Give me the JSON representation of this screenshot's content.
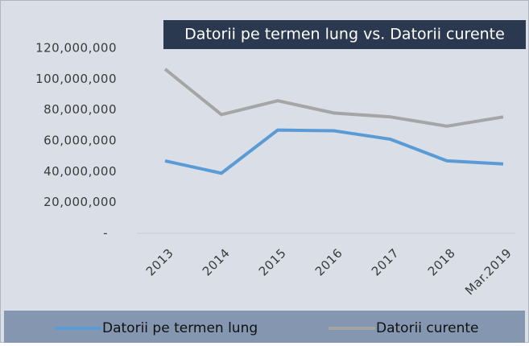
{
  "chart_data": {
    "type": "line",
    "title": "Datorii pe termen lung vs. Datorii curente",
    "categories": [
      "2013",
      "2014",
      "2015",
      "2016",
      "2017",
      "2018",
      "Mar.2019"
    ],
    "series": [
      {
        "name": "Datorii pe termen lung",
        "color": "#5b9bd5",
        "values": [
          47000000,
          39000000,
          67000000,
          66500000,
          61000000,
          47000000,
          45000000
        ]
      },
      {
        "name": "Datorii curente",
        "color": "#a5a5a5",
        "values": [
          106500000,
          77000000,
          86000000,
          78000000,
          75500000,
          69500000,
          75500000
        ]
      }
    ],
    "ylim": [
      0,
      120000000
    ],
    "yticks": [
      {
        "value": 0,
        "label": "-"
      },
      {
        "value": 20000000,
        "label": "20,000,000"
      },
      {
        "value": 40000000,
        "label": "40,000,000"
      },
      {
        "value": 60000000,
        "label": "60,000,000"
      },
      {
        "value": 80000000,
        "label": "80,000,000"
      },
      {
        "value": 100000000,
        "label": "100,000,000"
      },
      {
        "value": 120000000,
        "label": "120,000,000"
      }
    ],
    "legend": "bottom"
  }
}
